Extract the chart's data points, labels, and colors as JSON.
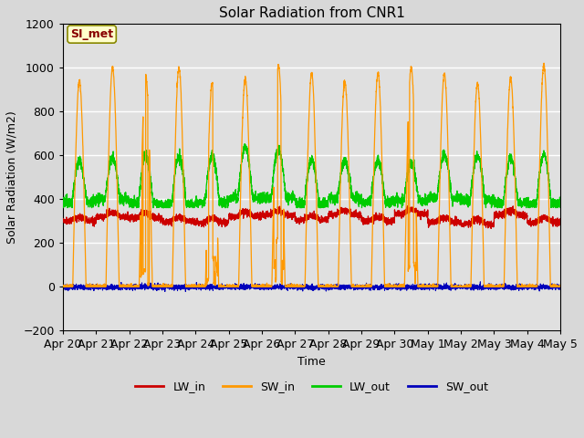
{
  "title": "Solar Radiation from CNR1",
  "xlabel": "Time",
  "ylabel": "Solar Radiation (W/m2)",
  "ylim": [
    -200,
    1200
  ],
  "yticks": [
    -200,
    0,
    200,
    400,
    600,
    800,
    1000,
    1200
  ],
  "fig_bg_color": "#d8d8d8",
  "plot_bg_color": "#e0e0e0",
  "annotation_text": "SI_met",
  "annotation_bg": "#ffffcc",
  "annotation_border": "#aaaaaa",
  "annotation_text_color": "#880000",
  "line_colors": {
    "LW_in": "#cc0000",
    "SW_in": "#ff9900",
    "LW_out": "#00cc00",
    "SW_out": "#0000bb"
  },
  "x_tick_labels": [
    "Apr 20",
    "Apr 21",
    "Apr 22",
    "Apr 23",
    "Apr 24",
    "Apr 25",
    "Apr 26",
    "Apr 27",
    "Apr 28",
    "Apr 29",
    "Apr 30",
    "May 1",
    "May 2",
    "May 3",
    "May 4",
    "May 5"
  ],
  "num_days": 15,
  "points_per_day": 288,
  "seed": 1234
}
